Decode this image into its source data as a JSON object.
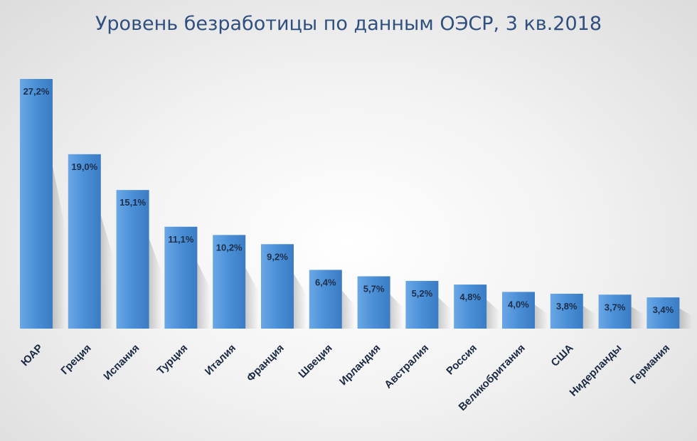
{
  "chart_data": {
    "type": "bar",
    "title": "Уровень безработицы по данным ОЭСР, 3 кв.2018",
    "categories": [
      "ЮАР",
      "Греция",
      "Испания",
      "Турция",
      "Италия",
      "Франция",
      "Швеция",
      "Ирландия",
      "Австралия",
      "Россия",
      "Великобритания",
      "США",
      "Нидерланды",
      "Германия"
    ],
    "values": [
      27.2,
      19.0,
      15.1,
      11.1,
      10.2,
      9.2,
      6.4,
      5.7,
      5.2,
      4.8,
      4.0,
      3.8,
      3.7,
      3.4
    ],
    "value_labels": [
      "27,2%",
      "19,0%",
      "15,1%",
      "11,1%",
      "10,2%",
      "9,2%",
      "6,4%",
      "5,7%",
      "5,2%",
      "4,8%",
      "4,0%",
      "3,8%",
      "3,7%",
      "3,4%"
    ],
    "xlabel": "",
    "ylabel": "",
    "ylim": [
      0,
      28
    ],
    "grid": false,
    "legend": "none",
    "bar_color": "#4a8fd6",
    "title_color": "#2f4f7f"
  }
}
